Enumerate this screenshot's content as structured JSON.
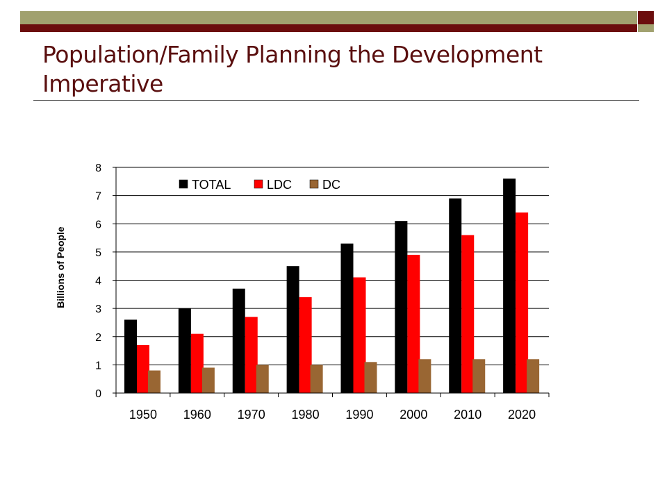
{
  "slide": {
    "title": "Population/Family Planning the Development Imperative",
    "colors": {
      "olive": "#a1a16f",
      "maroon": "#6b0d0d",
      "title": "#5a0f0f"
    }
  },
  "chart_data": {
    "type": "bar",
    "ylabel": "Billions of People",
    "xlabel": "",
    "ylim": [
      0,
      8
    ],
    "yticks": [
      0,
      1,
      2,
      3,
      4,
      5,
      6,
      7,
      8
    ],
    "grid": true,
    "legend": "top-center",
    "categories": [
      "1950",
      "1960",
      "1970",
      "1980",
      "1990",
      "2000",
      "2010",
      "2020"
    ],
    "series": [
      {
        "name": "TOTAL",
        "color": "#000000",
        "values": [
          2.6,
          3.0,
          3.7,
          4.5,
          5.3,
          6.1,
          6.9,
          7.6
        ]
      },
      {
        "name": "LDC",
        "color": "#ff0000",
        "values": [
          1.7,
          2.1,
          2.7,
          3.4,
          4.1,
          4.9,
          5.6,
          6.4
        ]
      },
      {
        "name": "DC",
        "color": "#996633",
        "values": [
          0.8,
          0.9,
          1.0,
          1.0,
          1.1,
          1.2,
          1.2,
          1.2
        ]
      }
    ]
  }
}
